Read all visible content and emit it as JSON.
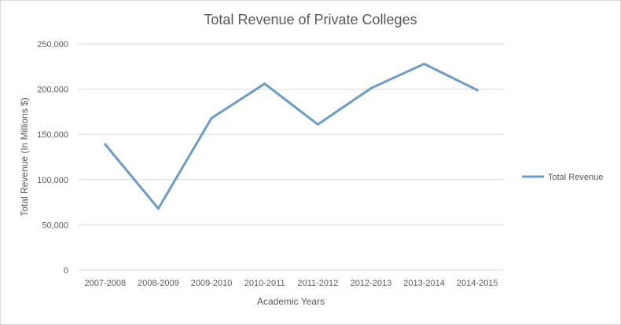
{
  "chart_data": {
    "type": "line",
    "title": "Total Revenue of Private Colleges",
    "xlabel": "Academic Years",
    "ylabel": "Total Revenue  (In Millions $)",
    "categories": [
      "2007-2008",
      "2008-2009",
      "2009-2010",
      "2010-2011",
      "2011-2012",
      "2012-2013",
      "2013-2014",
      "2014-2015"
    ],
    "series": [
      {
        "name": "Total Revenue",
        "values": [
          139000,
          68000,
          168000,
          206000,
          161000,
          201000,
          228000,
          199000
        ],
        "color": "#6b9dc8"
      }
    ],
    "ylim": [
      0,
      250000
    ],
    "yticks": [
      0,
      50000,
      100000,
      150000,
      200000,
      250000
    ],
    "ytick_labels": [
      "0",
      "50,000",
      "100,000",
      "150,000",
      "200,000",
      "250,000"
    ],
    "grid": true,
    "legend_position": "right",
    "gridline_color": "#d9d9d9"
  }
}
